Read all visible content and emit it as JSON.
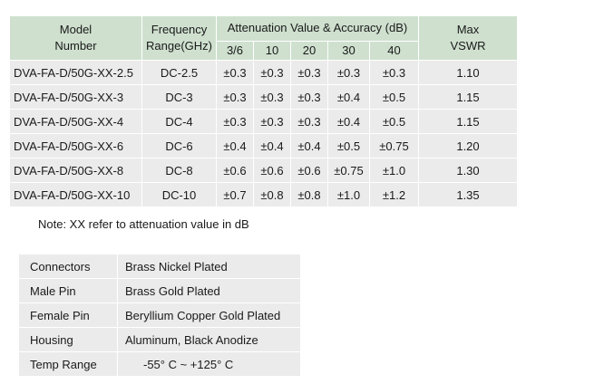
{
  "spec_table": {
    "header": {
      "model": "Model\nNumber",
      "freq": "Frequency\nRange(GHz)",
      "atten": "Attenuation Value & Accuracy (dB)",
      "vswr": "Max\nVSWR",
      "atten_cols": [
        "3/6",
        "10",
        "20",
        "30",
        "40"
      ]
    },
    "rows": [
      {
        "model": "DVA-FA-D/50G-XX-2.5",
        "freq": "DC-2.5",
        "acc": [
          "±0.3",
          "±0.3",
          "±0.3",
          "±0.3",
          "±0.3"
        ],
        "vswr": "1.10"
      },
      {
        "model": "DVA-FA-D/50G-XX-3",
        "freq": "DC-3",
        "acc": [
          "±0.3",
          "±0.3",
          "±0.3",
          "±0.4",
          "±0.5"
        ],
        "vswr": "1.15"
      },
      {
        "model": "DVA-FA-D/50G-XX-4",
        "freq": "DC-4",
        "acc": [
          "±0.3",
          "±0.3",
          "±0.3",
          "±0.4",
          "±0.5"
        ],
        "vswr": "1.15"
      },
      {
        "model": "DVA-FA-D/50G-XX-6",
        "freq": "DC-6",
        "acc": [
          "±0.4",
          "±0.4",
          "±0.4",
          "±0.5",
          "±0.75"
        ],
        "vswr": "1.20"
      },
      {
        "model": "DVA-FA-D/50G-XX-8",
        "freq": "DC-8",
        "acc": [
          "±0.6",
          "±0.6",
          "±0.6",
          "±0.75",
          "±1.0"
        ],
        "vswr": "1.30"
      },
      {
        "model": "DVA-FA-D/50G-XX-10",
        "freq": "DC-10",
        "acc": [
          "±0.7",
          "±0.8",
          "±0.8",
          "±1.0",
          "±1.2"
        ],
        "vswr": "1.35"
      }
    ]
  },
  "note": "Note: XX refer to attenuation value in dB",
  "materials": [
    {
      "label": "Connectors",
      "value": "Brass Nickel Plated"
    },
    {
      "label": "Male Pin",
      "value": "Brass Gold Plated"
    },
    {
      "label": "Female Pin",
      "value": "Beryllium Copper Gold Plated"
    },
    {
      "label": "Housing",
      "value": "Aluminum, Black Anodize"
    },
    {
      "label": "Temp Range",
      "value": "-55° C ~ +125° C"
    }
  ],
  "colors": {
    "header_bg": "#cfe0cf",
    "cell_bg": "#ebebeb"
  }
}
